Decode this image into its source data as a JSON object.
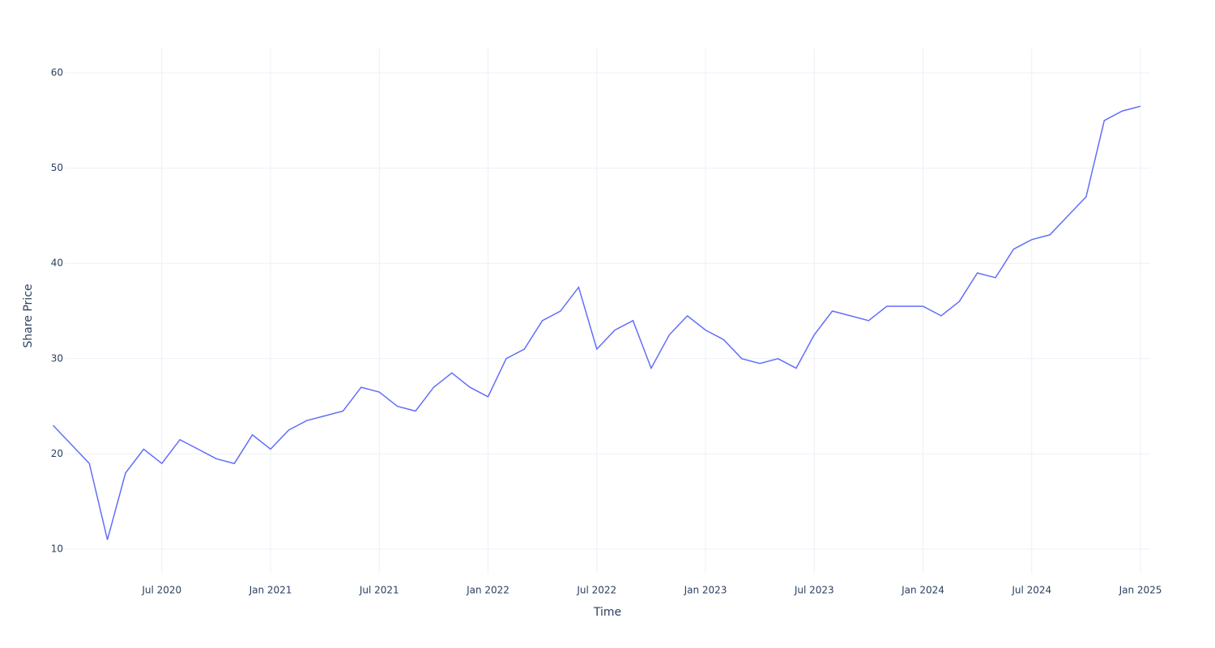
{
  "chart_data": {
    "type": "line",
    "x_label": "Time",
    "y_label": "Share Price",
    "x": [
      "2020-01",
      "2020-02",
      "2020-03",
      "2020-04",
      "2020-05",
      "2020-06",
      "2020-07",
      "2020-08",
      "2020-09",
      "2020-10",
      "2020-11",
      "2020-12",
      "2021-01",
      "2021-02",
      "2021-03",
      "2021-04",
      "2021-05",
      "2021-06",
      "2021-07",
      "2021-08",
      "2021-09",
      "2021-10",
      "2021-11",
      "2021-12",
      "2022-01",
      "2022-02",
      "2022-03",
      "2022-04",
      "2022-05",
      "2022-06",
      "2022-07",
      "2022-08",
      "2022-09",
      "2022-10",
      "2022-11",
      "2022-12",
      "2023-01",
      "2023-02",
      "2023-03",
      "2023-04",
      "2023-05",
      "2023-06",
      "2023-07",
      "2023-08",
      "2023-09",
      "2023-10",
      "2023-11",
      "2023-12",
      "2024-01",
      "2024-02",
      "2024-03",
      "2024-04",
      "2024-05",
      "2024-06",
      "2024-07",
      "2024-08",
      "2024-09",
      "2024-10",
      "2024-11",
      "2024-12",
      "2025-01"
    ],
    "series": [
      {
        "name": "Share Price",
        "color": "#636efa",
        "values": [
          23,
          21,
          19,
          11,
          18,
          20.5,
          19,
          21.5,
          20.5,
          19.5,
          19,
          22,
          20.5,
          22.5,
          23.5,
          24,
          24.5,
          27,
          26.5,
          25,
          24.5,
          27,
          28.5,
          27,
          26,
          30,
          31,
          34,
          35,
          37.5,
          31,
          33,
          34,
          29,
          32.5,
          34.5,
          33,
          32,
          30,
          29.5,
          30,
          29,
          32.5,
          35,
          34.5,
          34,
          35.5,
          35.5,
          35.5,
          34.5,
          36,
          39,
          38.5,
          41.5,
          42.5,
          43,
          45,
          47,
          55,
          56,
          56.5
        ]
      }
    ],
    "xlim": [
      "2020-01",
      "2025-01"
    ],
    "xticks": [
      {
        "value": "2020-07",
        "label": "Jul 2020"
      },
      {
        "value": "2021-01",
        "label": "Jan 2021"
      },
      {
        "value": "2021-07",
        "label": "Jul 2021"
      },
      {
        "value": "2022-01",
        "label": "Jan 2022"
      },
      {
        "value": "2022-07",
        "label": "Jul 2022"
      },
      {
        "value": "2023-01",
        "label": "Jan 2023"
      },
      {
        "value": "2023-07",
        "label": "Jul 2023"
      },
      {
        "value": "2024-01",
        "label": "Jan 2024"
      },
      {
        "value": "2024-07",
        "label": "Jul 2024"
      },
      {
        "value": "2025-01",
        "label": "Jan 2025"
      }
    ],
    "ylim": [
      7.45,
      62.55
    ],
    "yticks": [
      10,
      20,
      30,
      40,
      50,
      60
    ],
    "grid": true
  }
}
